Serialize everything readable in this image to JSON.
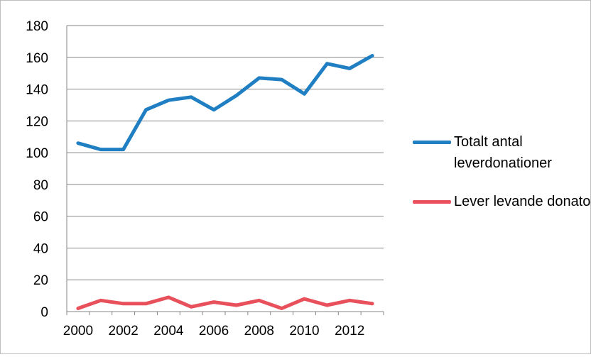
{
  "chart_data": {
    "type": "line",
    "title": "",
    "xlabel": "",
    "ylabel": "",
    "ylim": [
      0,
      180
    ],
    "y_ticks": [
      "0",
      "20",
      "40",
      "60",
      "80",
      "100",
      "120",
      "140",
      "160",
      "180"
    ],
    "x": [
      2000,
      2001,
      2002,
      2003,
      2004,
      2005,
      2006,
      2007,
      2008,
      2009,
      2010,
      2011,
      2012,
      2013
    ],
    "x_tick_labels": [
      "2000",
      "2002",
      "2004",
      "2006",
      "2008",
      "2010",
      "2012"
    ],
    "grid": true,
    "legend_position": "right",
    "series": [
      {
        "name": "Totalt antal leverdonationer",
        "color": "#1f7fc2",
        "values": [
          106,
          102,
          102,
          127,
          133,
          135,
          127,
          136,
          147,
          146,
          137,
          156,
          153,
          161
        ]
      },
      {
        "name": "Lever levande donator",
        "color": "#e8515b",
        "values": [
          2,
          7,
          5,
          5,
          9,
          3,
          6,
          4,
          7,
          2,
          8,
          4,
          7,
          5
        ]
      }
    ]
  }
}
